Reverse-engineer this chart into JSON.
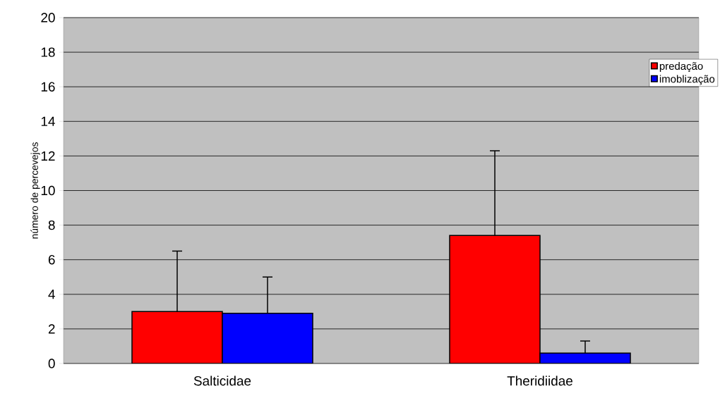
{
  "chart_data": {
    "type": "bar",
    "ylabel": "número de percevejos",
    "categories": [
      "Salticidae",
      "Theridiidae"
    ],
    "series": [
      {
        "name": "predação",
        "color": "#ff0000",
        "values": [
          3.0,
          7.4
        ],
        "errors": [
          [
            3.0,
            6.5
          ],
          [
            7.4,
            12.3
          ]
        ]
      },
      {
        "name": "imoblização",
        "color": "#0000ff",
        "values": [
          2.9,
          0.6
        ],
        "errors": [
          [
            2.9,
            5.0
          ],
          [
            0.6,
            1.3
          ]
        ]
      }
    ],
    "ylim": [
      0,
      20
    ],
    "yticks": [
      0,
      2,
      4,
      6,
      8,
      10,
      12,
      14,
      16,
      18,
      20
    ],
    "grid": "y",
    "legend": "top right"
  }
}
